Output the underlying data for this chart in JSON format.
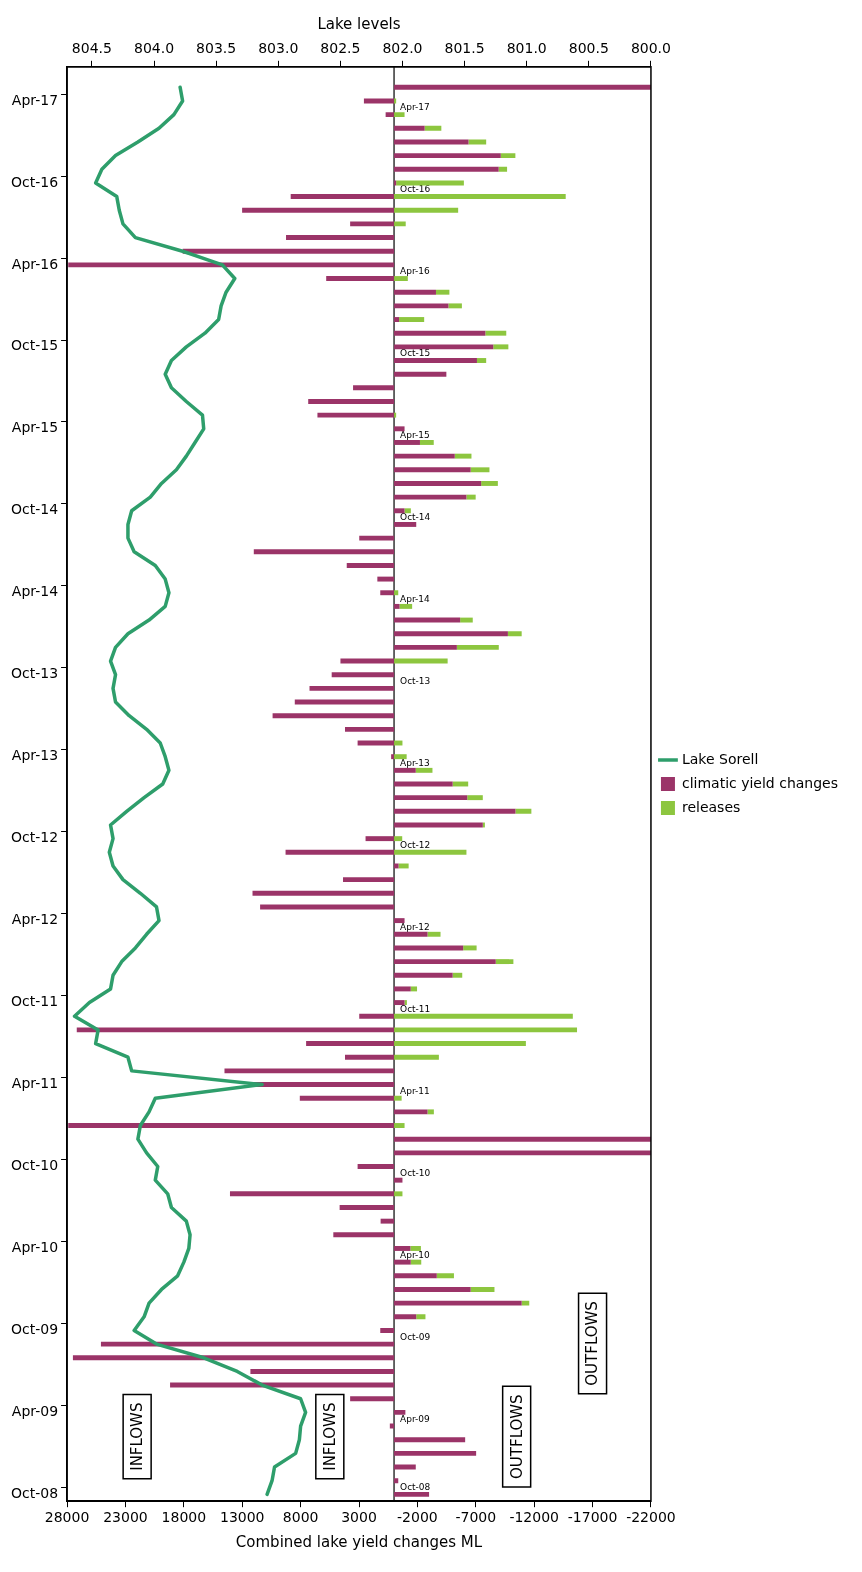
{
  "chart_data": {
    "type": "bar",
    "orientation": "horizontal",
    "stacked": true,
    "xlabel": "Combined lake yield changes ML",
    "x2label": "Lake levels",
    "categories": [
      null,
      null,
      "Apr-17",
      null,
      null,
      null,
      null,
      null,
      "Oct-16",
      null,
      null,
      null,
      null,
      null,
      "Apr-16",
      null,
      null,
      null,
      null,
      null,
      "Oct-15",
      null,
      null,
      null,
      null,
      null,
      "Apr-15",
      null,
      null,
      null,
      null,
      null,
      "Oct-14",
      null,
      null,
      null,
      null,
      null,
      "Apr-14",
      null,
      null,
      null,
      null,
      null,
      "Oct-13",
      null,
      null,
      null,
      null,
      null,
      "Apr-13",
      null,
      null,
      null,
      null,
      null,
      "Oct-12",
      null,
      null,
      null,
      null,
      null,
      "Apr-12",
      null,
      null,
      null,
      null,
      null,
      "Oct-11",
      null,
      null,
      null,
      null,
      null,
      "Apr-11",
      null,
      null,
      null,
      null,
      null,
      "Oct-10",
      null,
      null,
      null,
      null,
      null,
      "Apr-10",
      null,
      null,
      null,
      null,
      null,
      "Oct-09",
      null,
      null,
      null,
      null,
      null,
      "Apr-09",
      null,
      null,
      null,
      null,
      null,
      "Oct-08"
    ],
    "series": [
      {
        "name": "climatic yield changes",
        "color": "#9b3468",
        "values": [
          null,
          -22000,
          2580,
          720,
          -2620,
          -6380,
          -9140,
          -8960,
          -180,
          8850,
          13010,
          3760,
          9250,
          18100,
          27900,
          5810,
          -3590,
          -4660,
          -430,
          -7820,
          -8500,
          -7100,
          -4480,
          3510,
          7350,
          6560,
          -900,
          -2220,
          -5200,
          -6560,
          -7460,
          -6200,
          -900,
          -1900,
          2980,
          12010,
          4050,
          1430,
          1180,
          -470,
          -5660,
          -9750,
          -5380,
          4590,
          5340,
          7240,
          8500,
          10400,
          4200,
          3120,
          250,
          -1860,
          -5020,
          -6270,
          -10400,
          -7600,
          2440,
          9290,
          -390,
          4370,
          12120,
          11470,
          -900,
          -2870,
          -5920,
          -8710,
          -5020,
          -1430,
          -900,
          2980,
          27170,
          7530,
          4200,
          14520,
          12080,
          8070,
          -2870,
          27900,
          -22000,
          -22000,
          3120,
          -720,
          14050,
          4660,
          1150,
          5200,
          -1400,
          -1430,
          -3660,
          -6560,
          -10930,
          -1900,
          1180,
          25100,
          27500,
          12300,
          19180,
          3760,
          -970,
          360,
          -6090,
          -7030,
          -1860,
          -360,
          -3000
        ]
      },
      {
        "name": "releases",
        "color": "#8dc63f",
        "values": [
          null,
          null,
          -180,
          -900,
          -1430,
          -1510,
          -1250,
          -720,
          -5800,
          -14700,
          -5490,
          -1000,
          null,
          null,
          null,
          -1180,
          -1150,
          -1150,
          -2150,
          -1790,
          -1290,
          -790,
          null,
          null,
          null,
          -180,
          null,
          -1180,
          -1430,
          -1610,
          -1430,
          -790,
          -540,
          null,
          null,
          null,
          null,
          null,
          -360,
          -1080,
          -1080,
          -1180,
          -3590,
          -4590,
          null,
          null,
          null,
          null,
          null,
          -720,
          -1080,
          -1430,
          -1330,
          -1330,
          -1360,
          -180,
          -700,
          -6200,
          -860,
          null,
          null,
          null,
          null,
          -1110,
          -1150,
          -1510,
          -820,
          -540,
          -200,
          -15310,
          -15670,
          -11290,
          -3840,
          null,
          null,
          -650,
          -540,
          -900,
          null,
          null,
          null,
          null,
          -720,
          null,
          null,
          null,
          -900,
          -900,
          -1470,
          -2040,
          -650,
          -790,
          null,
          null,
          null,
          null,
          null,
          null,
          null,
          null,
          null,
          null,
          null,
          null,
          null
        ]
      },
      {
        "name": "Lake Sorell",
        "type": "line",
        "axis": "x2",
        "color": "#2e9e6b",
        "values": [
          null,
          803.79,
          803.77,
          803.84,
          803.96,
          804.13,
          804.31,
          804.42,
          804.47,
          804.3,
          804.28,
          804.25,
          804.15,
          803.77,
          803.45,
          803.35,
          803.42,
          803.46,
          803.48,
          803.59,
          803.74,
          803.86,
          803.91,
          803.86,
          803.74,
          803.61,
          803.6,
          803.67,
          803.74,
          803.82,
          803.94,
          804.03,
          804.18,
          804.21,
          804.21,
          804.16,
          803.99,
          803.91,
          803.88,
          803.91,
          804.04,
          804.21,
          804.31,
          804.35,
          804.31,
          804.33,
          804.31,
          804.2,
          804.06,
          803.95,
          803.91,
          803.88,
          803.93,
          804.08,
          804.22,
          804.35,
          804.33,
          804.36,
          804.33,
          804.25,
          804.11,
          803.98,
          803.96,
          804.06,
          804.15,
          804.26,
          804.33,
          804.35,
          804.52,
          804.64,
          804.45,
          804.47,
          804.21,
          804.18,
          803.13,
          803.99,
          804.04,
          804.11,
          804.13,
          804.06,
          803.97,
          803.99,
          803.89,
          803.86,
          803.74,
          803.71,
          803.72,
          803.76,
          803.81,
          803.94,
          804.04,
          804.08,
          804.16,
          803.98,
          803.6,
          803.33,
          803.13,
          802.82,
          802.78,
          802.82,
          802.83,
          802.86,
          803.03,
          803.05,
          803.09
        ]
      }
    ],
    "xlim": [
      28000,
      -22000
    ],
    "xticks": [
      28000,
      23000,
      18000,
      13000,
      8000,
      3000,
      -2000,
      -7000,
      -12000,
      -17000,
      -22000
    ],
    "x2lim": [
      804.7,
      800.0
    ],
    "x2ticks": [
      804.5,
      {
        "value": 804,
        "label": "804.0"
      },
      803.5,
      {
        "value": 803,
        "label": "803.0"
      },
      802.5,
      {
        "value": 802,
        "label": "802.0"
      },
      801.5,
      {
        "value": 801,
        "label": "801.0"
      },
      800.5,
      {
        "value": 800,
        "label": "800.0"
      }
    ],
    "legend": "right",
    "annotations": [
      "INFLOWS",
      "INFLOWS",
      "OUTFLOWS",
      "OUTFLOWS"
    ]
  }
}
